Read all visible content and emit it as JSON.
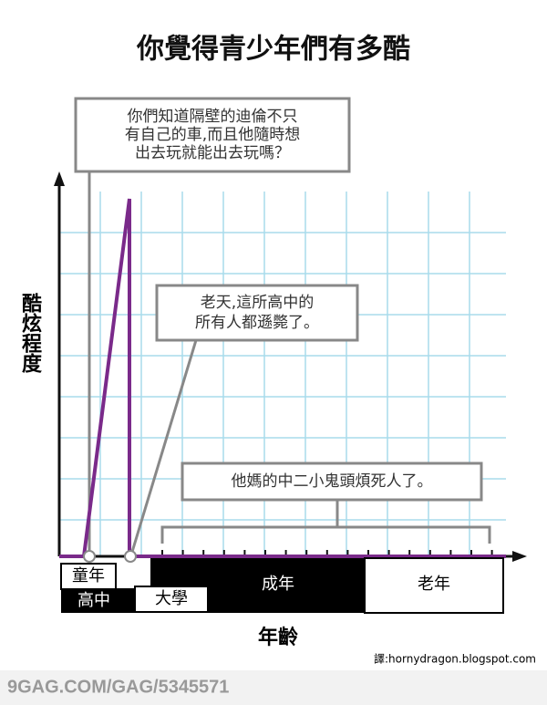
{
  "title": "你覺得青少年們有多酷",
  "y_axis_label": "酷炫程度",
  "x_axis_label": "年齡",
  "callouts": [
    {
      "lines": [
        "你們知道隔壁的迪倫不只",
        "有自己的車,而且他隨時想",
        "出去玩就能出去玩嗎？"
      ]
    },
    {
      "lines": [
        "老天,這所高中的",
        "所有人都遜斃了。"
      ]
    },
    {
      "lines": [
        "他媽的中二小鬼頭煩死人了。"
      ]
    }
  ],
  "stages": [
    "童年",
    "高中",
    "大學",
    "成年",
    "老年"
  ],
  "credit": "譯:hornydragon.blogspot.com",
  "footer": "9GAG.COM/GAG/5345571"
}
